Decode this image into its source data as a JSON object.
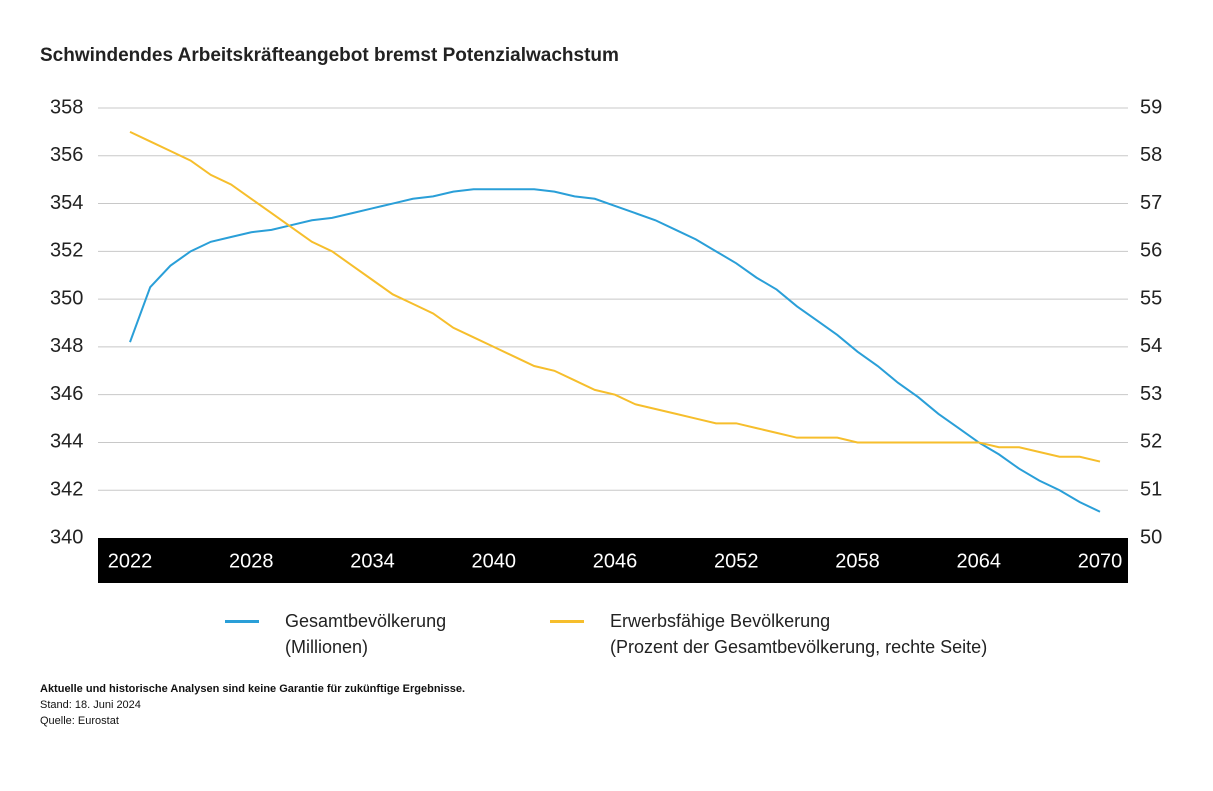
{
  "chart_data": {
    "type": "line",
    "title": "Schwindendes Arbeitskräfteangebot bremst Potenzialwachstum",
    "x": [
      2022,
      2023,
      2024,
      2025,
      2026,
      2027,
      2028,
      2029,
      2030,
      2031,
      2032,
      2033,
      2034,
      2035,
      2036,
      2037,
      2038,
      2039,
      2040,
      2041,
      2042,
      2043,
      2044,
      2045,
      2046,
      2047,
      2048,
      2049,
      2050,
      2051,
      2052,
      2053,
      2054,
      2055,
      2056,
      2057,
      2058,
      2059,
      2060,
      2061,
      2062,
      2063,
      2064,
      2065,
      2066,
      2067,
      2068,
      2069,
      2070
    ],
    "xlim": [
      2022,
      2070
    ],
    "xticks": [
      2022,
      2028,
      2034,
      2040,
      2046,
      2052,
      2058,
      2064,
      2070
    ],
    "ylim": [
      340,
      358
    ],
    "yticks": [
      340,
      342,
      344,
      346,
      348,
      350,
      352,
      354,
      356,
      358
    ],
    "y2lim": [
      50,
      59
    ],
    "y2ticks": [
      50,
      51,
      52,
      53,
      54,
      55,
      56,
      57,
      58,
      59
    ],
    "grid": true,
    "series": [
      {
        "name": "Gesamtbevölkerung\n(Millionen)",
        "color": "#2a9fd8",
        "values": [
          348.2,
          350.5,
          351.4,
          352.0,
          352.4,
          352.6,
          352.8,
          352.9,
          353.1,
          353.3,
          353.4,
          353.6,
          353.8,
          354.0,
          354.2,
          354.3,
          354.5,
          354.6,
          354.6,
          354.6,
          354.6,
          354.5,
          354.3,
          354.2,
          353.9,
          353.6,
          353.3,
          352.9,
          352.5,
          352.0,
          351.5,
          350.9,
          350.4,
          349.7,
          349.1,
          348.5,
          347.8,
          347.2,
          346.5,
          345.9,
          345.2,
          344.6,
          344.0,
          343.5,
          342.9,
          342.4,
          342.0,
          341.5,
          341.1
        ]
      },
      {
        "name": "Erwerbsfähige Bevölkerung\n(Prozent der Gesamtbevölkerung, rechte Seite)",
        "color": "#f6be2c",
        "axis": "y2",
        "values": [
          58.5,
          58.3,
          58.1,
          57.9,
          57.6,
          57.4,
          57.1,
          56.8,
          56.5,
          56.2,
          56.0,
          55.7,
          55.4,
          55.1,
          54.9,
          54.7,
          54.4,
          54.2,
          54.0,
          53.8,
          53.6,
          53.5,
          53.3,
          53.1,
          53.0,
          52.8,
          52.7,
          52.6,
          52.5,
          52.4,
          52.4,
          52.3,
          52.2,
          52.1,
          52.1,
          52.1,
          52.0,
          52.0,
          52.0,
          52.0,
          52.0,
          52.0,
          52.0,
          51.9,
          51.9,
          51.8,
          51.7,
          51.7,
          51.6
        ]
      }
    ],
    "notes": [
      "Aktuelle und historische Analysen sind keine Garantie für zukünftige Ergebnisse.",
      "Stand: 18. Juni 2024",
      "Quelle: Eurostat"
    ]
  }
}
